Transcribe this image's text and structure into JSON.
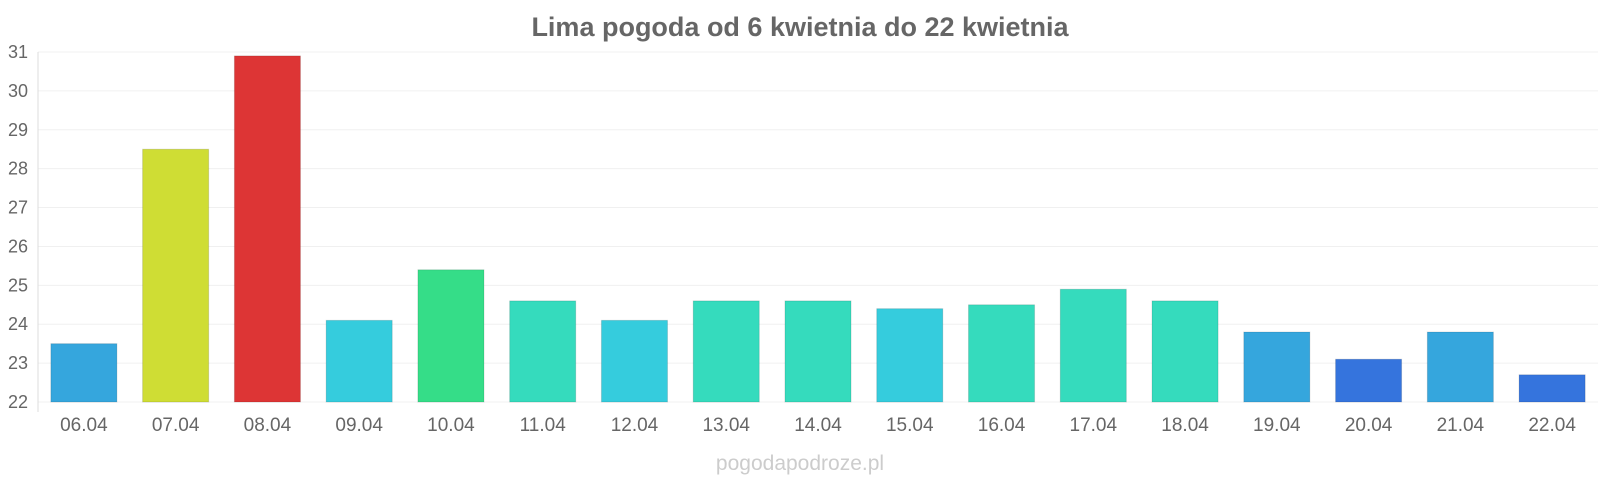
{
  "chart_data": {
    "type": "bar",
    "title": "Lima pogoda od 6 kwietnia do 22 kwietnia",
    "xlabel": "",
    "ylabel": "",
    "categories": [
      "06.04",
      "07.04",
      "08.04",
      "09.04",
      "10.04",
      "11.04",
      "12.04",
      "13.04",
      "14.04",
      "15.04",
      "16.04",
      "17.04",
      "18.04",
      "19.04",
      "20.04",
      "21.04",
      "22.04"
    ],
    "values": [
      23.5,
      28.5,
      30.9,
      24.1,
      25.4,
      24.6,
      24.1,
      24.6,
      24.6,
      24.4,
      24.5,
      24.9,
      24.6,
      23.8,
      23.1,
      23.8,
      22.7
    ],
    "colors": [
      "#35a6dd",
      "#cfdd34",
      "#dd3535",
      "#35ccdd",
      "#35dd88",
      "#35dbbd",
      "#35ccdd",
      "#35dbbd",
      "#35dbbd",
      "#35ccdd",
      "#35dbbd",
      "#35dbbd",
      "#35dbbd",
      "#35a6dd",
      "#3574dd",
      "#35a6dd",
      "#3574dd"
    ],
    "ylim": [
      22,
      31
    ],
    "yticks": [
      22,
      23,
      24,
      25,
      26,
      27,
      28,
      29,
      30,
      31
    ],
    "grid": true,
    "legend": "none"
  },
  "watermark": "pogodapodroze.pl"
}
